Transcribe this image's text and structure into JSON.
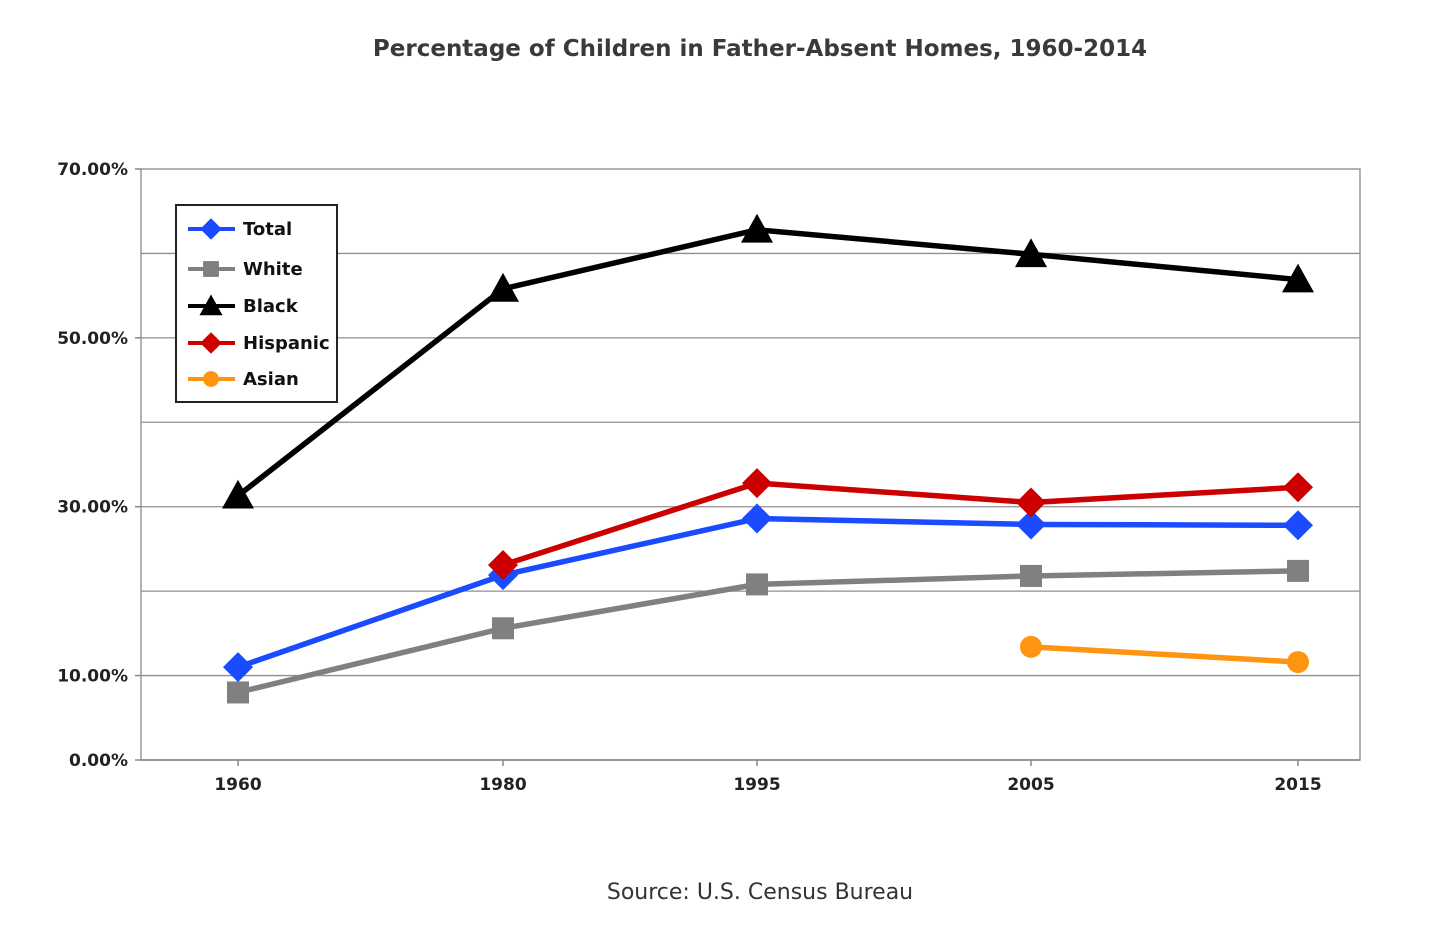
{
  "chart_data": {
    "type": "line",
    "title": "Percentage of Children in Father-Absent Homes, 1960-2014",
    "source": "Source: U.S. Census Bureau",
    "categories": [
      "1960",
      "1980",
      "1995",
      "2005",
      "2015"
    ],
    "ylim": [
      0,
      70
    ],
    "yticks": [
      0,
      10,
      30,
      50,
      70
    ],
    "ytick_labels": [
      "0.00%",
      "10.00%",
      "30.00%",
      "50.00%",
      "70.00%"
    ],
    "gridlines": [
      10,
      20,
      30,
      40,
      50,
      60,
      70
    ],
    "grid": true,
    "legend": "top-left",
    "series": [
      {
        "name": "Total",
        "color": "#1a4bff",
        "marker": "diamond",
        "values": [
          11.0,
          21.9,
          28.6,
          27.9,
          27.8
        ]
      },
      {
        "name": "White",
        "color": "#808080",
        "marker": "square",
        "values": [
          8.0,
          15.6,
          20.8,
          21.8,
          22.4
        ]
      },
      {
        "name": "Black",
        "color": "#000000",
        "marker": "triangle",
        "values": [
          31.3,
          55.8,
          62.8,
          59.9,
          56.9
        ]
      },
      {
        "name": "Hispanic",
        "color": "#cc0000",
        "marker": "diamond",
        "values": [
          null,
          23.1,
          32.8,
          30.5,
          32.3
        ]
      },
      {
        "name": "Asian",
        "color": "#ff9410",
        "marker": "circle",
        "values": [
          null,
          null,
          null,
          13.4,
          11.6
        ]
      }
    ]
  }
}
